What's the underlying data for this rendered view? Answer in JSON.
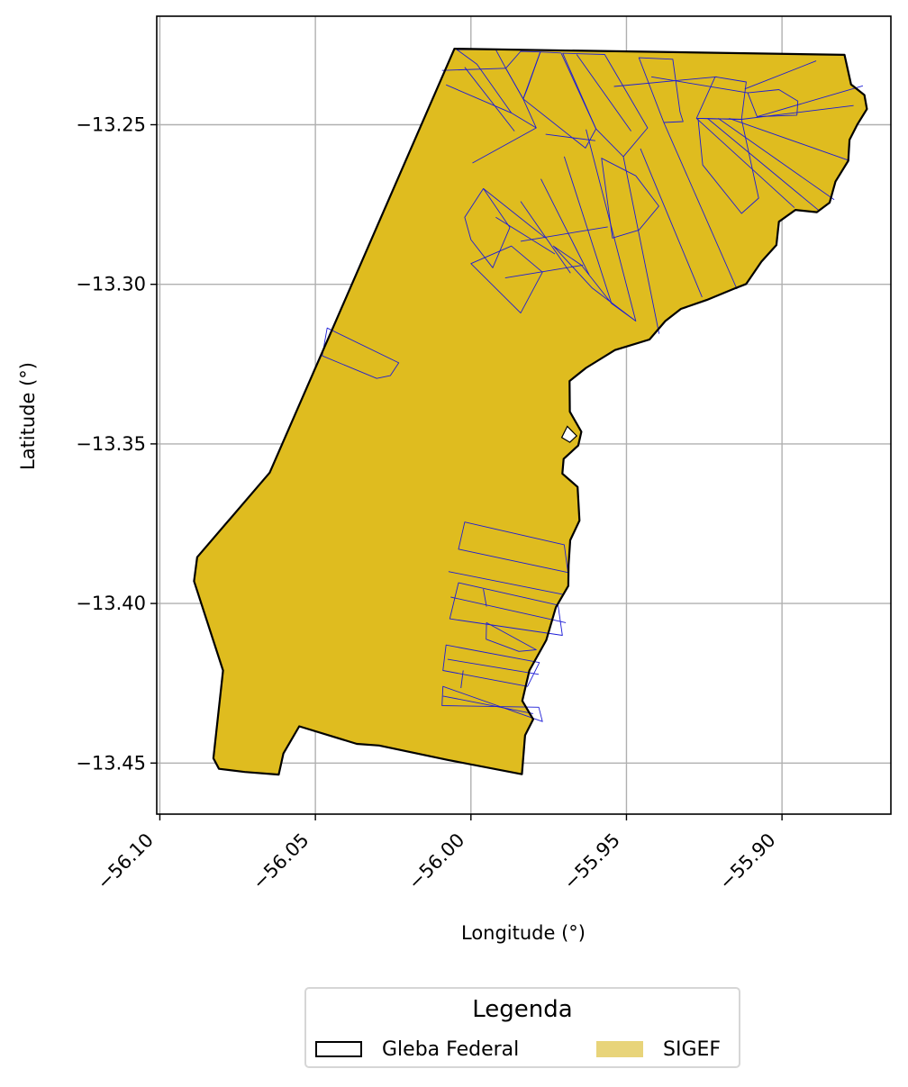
{
  "chart_data": {
    "type": "map",
    "xlabel": "Longitude (°)",
    "ylabel": "Latitude (°)",
    "xlim": [
      -56.101,
      -55.865
    ],
    "ylim": [
      -13.466,
      -13.216
    ],
    "xticks": [
      -56.1,
      -56.05,
      -56.0,
      -55.95,
      -55.9
    ],
    "xtick_labels": [
      "−56.10",
      "−56.05",
      "−56.00",
      "−55.95",
      "−55.90"
    ],
    "yticks": [
      -13.25,
      -13.3,
      -13.35,
      -13.4,
      -13.45
    ],
    "ytick_labels": [
      "−13.25",
      "−13.30",
      "−13.35",
      "−13.40",
      "−13.45"
    ],
    "grid": true,
    "legend": {
      "title": "Legenda",
      "position": "bottom-center-below-plot",
      "entries": [
        {
          "label": "Gleba Federal",
          "style": "outline",
          "color": "#000000"
        },
        {
          "label": "SIGEF",
          "style": "fill",
          "color": "#e8d47a"
        }
      ]
    },
    "colors": {
      "gleba_outline": "#000000",
      "sigef_fill": "#dfbc1f",
      "sigef_edge": "#1c1cd6",
      "grid": "#b0b0b0"
    },
    "gleba_federal_boundary": [
      [
        -56.0053,
        -13.2262
      ],
      [
        -55.8799,
        -13.2281
      ],
      [
        -55.8778,
        -13.2374
      ],
      [
        -55.8735,
        -13.2407
      ],
      [
        -55.8727,
        -13.2451
      ],
      [
        -55.8757,
        -13.2498
      ],
      [
        -55.8783,
        -13.2547
      ],
      [
        -55.8787,
        -13.2613
      ],
      [
        -55.8828,
        -13.2678
      ],
      [
        -55.8847,
        -13.2744
      ],
      [
        -55.8888,
        -13.2774
      ],
      [
        -55.8957,
        -13.2767
      ],
      [
        -55.901,
        -13.2804
      ],
      [
        -55.9018,
        -13.2877
      ],
      [
        -55.9066,
        -13.2929
      ],
      [
        -55.9115,
        -13.2999
      ],
      [
        -55.9157,
        -13.3015
      ],
      [
        -55.9242,
        -13.3049
      ],
      [
        -55.9325,
        -13.3077
      ],
      [
        -55.9375,
        -13.3115
      ],
      [
        -55.9426,
        -13.3173
      ],
      [
        -55.9537,
        -13.3206
      ],
      [
        -55.963,
        -13.3262
      ],
      [
        -55.9683,
        -13.3303
      ],
      [
        -55.9682,
        -13.3399
      ],
      [
        -55.9645,
        -13.3462
      ],
      [
        -55.9655,
        -13.3505
      ],
      [
        -55.9702,
        -13.3547
      ],
      [
        -55.9706,
        -13.3593
      ],
      [
        -55.9657,
        -13.3635
      ],
      [
        -55.9651,
        -13.374
      ],
      [
        -55.9681,
        -13.3802
      ],
      [
        -55.9686,
        -13.388
      ],
      [
        -55.9687,
        -13.3945
      ],
      [
        -55.9727,
        -13.4012
      ],
      [
        -55.9758,
        -13.4115
      ],
      [
        -55.9812,
        -13.421
      ],
      [
        -55.9835,
        -13.4305
      ],
      [
        -55.98,
        -13.4363
      ],
      [
        -55.9826,
        -13.4413
      ],
      [
        -55.9836,
        -13.4535
      ],
      [
        -56.0075,
        -13.449
      ],
      [
        -56.0295,
        -13.4445
      ],
      [
        -56.0367,
        -13.444
      ],
      [
        -56.0552,
        -13.4385
      ],
      [
        -56.0603,
        -13.447
      ],
      [
        -56.0618,
        -13.4536
      ],
      [
        -56.0727,
        -13.4528
      ],
      [
        -56.081,
        -13.4518
      ],
      [
        -56.0828,
        -13.4485
      ],
      [
        -56.0797,
        -13.421
      ],
      [
        -56.089,
        -13.393
      ],
      [
        -56.088,
        -13.3855
      ],
      [
        -56.0647,
        -13.359
      ],
      [
        -56.0433,
        -13.3112
      ],
      [
        -56.0053,
        -13.2262
      ]
    ],
    "sigef_parcels": [
      [
        [
          -56.0045,
          -13.2265
        ],
        [
          -55.992,
          -13.2265
        ],
        [
          -55.9888,
          -13.2323
        ],
        [
          -55.9832,
          -13.2419
        ],
        [
          -55.979,
          -13.251
        ],
        [
          -55.987,
          -13.2463
        ],
        [
          -55.9981,
          -13.231
        ],
        [
          -56.0045,
          -13.2265
        ]
      ],
      [
        [
          -55.984,
          -13.227
        ],
        [
          -55.9777,
          -13.2272
        ],
        [
          -55.982,
          -13.239
        ],
        [
          -55.9832,
          -13.2419
        ],
        [
          -55.9888,
          -13.2323
        ],
        [
          -55.984,
          -13.227
        ]
      ],
      [
        [
          -55.9777,
          -13.2272
        ],
        [
          -55.971,
          -13.2275
        ],
        [
          -55.9598,
          -13.2513
        ],
        [
          -55.9632,
          -13.2573
        ],
        [
          -55.9832,
          -13.2419
        ],
        [
          -55.9777,
          -13.2272
        ]
      ],
      [
        [
          -55.9705,
          -13.2276
        ],
        [
          -55.957,
          -13.228
        ],
        [
          -55.9432,
          -13.251
        ],
        [
          -55.951,
          -13.26
        ],
        [
          -55.9598,
          -13.2513
        ],
        [
          -55.9705,
          -13.2276
        ]
      ],
      [
        [
          -55.946,
          -13.229
        ],
        [
          -55.9351,
          -13.2295
        ],
        [
          -55.9328,
          -13.246
        ],
        [
          -55.9318,
          -13.249
        ],
        [
          -55.938,
          -13.2493
        ],
        [
          -55.946,
          -13.229
        ]
      ],
      [
        [
          -55.9215,
          -13.235
        ],
        [
          -55.9115,
          -13.2366
        ],
        [
          -55.913,
          -13.2483
        ],
        [
          -55.9275,
          -13.248
        ],
        [
          -55.9215,
          -13.235
        ]
      ],
      [
        [
          -55.911,
          -13.24
        ],
        [
          -55.901,
          -13.239
        ],
        [
          -55.8949,
          -13.2426
        ],
        [
          -55.8952,
          -13.247
        ],
        [
          -55.908,
          -13.2475
        ],
        [
          -55.911,
          -13.24
        ]
      ],
      [
        [
          -55.927,
          -13.248
        ],
        [
          -55.913,
          -13.2483
        ],
        [
          -55.9075,
          -13.273
        ],
        [
          -55.913,
          -13.2778
        ],
        [
          -55.9255,
          -13.2626
        ],
        [
          -55.927,
          -13.248
        ]
      ],
      [
        [
          -55.958,
          -13.2605
        ],
        [
          -55.947,
          -13.266
        ],
        [
          -55.9396,
          -13.2755
        ],
        [
          -55.946,
          -13.283
        ],
        [
          -55.9545,
          -13.2855
        ],
        [
          -55.958,
          -13.2605
        ]
      ],
      [
        [
          -56.002,
          -13.279
        ],
        [
          -56.0,
          -13.286
        ],
        [
          -55.993,
          -13.2948
        ],
        [
          -55.9875,
          -13.2822
        ],
        [
          -55.996,
          -13.27
        ],
        [
          -56.002,
          -13.279
        ]
      ],
      [
        [
          -56.0,
          -13.2935
        ],
        [
          -55.984,
          -13.309
        ],
        [
          -55.977,
          -13.2962
        ],
        [
          -55.987,
          -13.288
        ],
        [
          -56.0,
          -13.2935
        ]
      ],
      [
        [
          -55.9735,
          -13.288
        ],
        [
          -55.9645,
          -13.294
        ],
        [
          -55.9548,
          -13.306
        ],
        [
          -55.947,
          -13.3115
        ],
        [
          -55.961,
          -13.3012
        ],
        [
          -55.9735,
          -13.288
        ]
      ],
      [
        [
          -56.0462,
          -13.3137
        ],
        [
          -56.0232,
          -13.3246
        ],
        [
          -56.0259,
          -13.3286
        ],
        [
          -56.0303,
          -13.3295
        ],
        [
          -56.0478,
          -13.3224
        ],
        [
          -56.0462,
          -13.3137
        ]
      ],
      [
        [
          -56.002,
          -13.3745
        ],
        [
          -55.97,
          -13.3816
        ],
        [
          -55.9688,
          -13.3903
        ],
        [
          -56.004,
          -13.383
        ],
        [
          -56.002,
          -13.3745
        ]
      ],
      [
        [
          -56.004,
          -13.3935
        ],
        [
          -55.972,
          -13.4005
        ],
        [
          -55.9706,
          -13.41
        ],
        [
          -56.0068,
          -13.4048
        ],
        [
          -56.004,
          -13.3935
        ]
      ],
      [
        [
          -55.995,
          -13.406
        ],
        [
          -55.979,
          -13.4145
        ],
        [
          -55.9846,
          -13.415
        ],
        [
          -55.9951,
          -13.4112
        ],
        [
          -55.995,
          -13.406
        ]
      ],
      [
        [
          -56.008,
          -13.413
        ],
        [
          -55.978,
          -13.4185
        ],
        [
          -55.9818,
          -13.426
        ],
        [
          -56.009,
          -13.421
        ],
        [
          -56.008,
          -13.413
        ]
      ],
      [
        [
          -56.009,
          -13.426
        ],
        [
          -55.977,
          -13.437
        ],
        [
          -55.9782,
          -13.4325
        ],
        [
          -56.0093,
          -13.432
        ],
        [
          -56.009,
          -13.426
        ]
      ]
    ],
    "sigef_division_lines": [
      [
        [
          -56.008,
          -13.2375
        ],
        [
          -55.987,
          -13.2463
        ]
      ],
      [
        [
          -56.0093,
          -13.233
        ],
        [
          -55.9888,
          -13.2323
        ]
      ],
      [
        [
          -55.9995,
          -13.262
        ],
        [
          -55.979,
          -13.251
        ]
      ],
      [
        [
          -55.996,
          -13.27
        ],
        [
          -55.976,
          -13.2855
        ]
      ],
      [
        [
          -55.992,
          -13.279
        ],
        [
          -55.973,
          -13.2905
        ]
      ],
      [
        [
          -55.984,
          -13.274
        ],
        [
          -55.968,
          -13.2965
        ]
      ],
      [
        [
          -55.9775,
          -13.267
        ],
        [
          -55.962,
          -13.297
        ]
      ],
      [
        [
          -55.97,
          -13.26
        ],
        [
          -55.9548,
          -13.306
        ]
      ],
      [
        [
          -55.963,
          -13.2515
        ],
        [
          -55.947,
          -13.3115
        ]
      ],
      [
        [
          -55.951,
          -13.26
        ],
        [
          -55.9395,
          -13.3155
        ]
      ],
      [
        [
          -55.9455,
          -13.2575
        ],
        [
          -55.9257,
          -13.304
        ]
      ],
      [
        [
          -55.938,
          -13.2493
        ],
        [
          -55.9145,
          -13.3015
        ]
      ],
      [
        [
          -55.9275,
          -13.248
        ],
        [
          -55.896,
          -13.276
        ]
      ],
      [
        [
          -55.924,
          -13.248
        ],
        [
          -55.888,
          -13.277
        ]
      ],
      [
        [
          -55.9205,
          -13.248
        ],
        [
          -55.8832,
          -13.2735
        ]
      ],
      [
        [
          -55.917,
          -13.248
        ],
        [
          -55.8785,
          -13.2612
        ]
      ],
      [
        [
          -55.913,
          -13.2483
        ],
        [
          -55.877,
          -13.244
        ]
      ],
      [
        [
          -55.908,
          -13.2475
        ],
        [
          -55.874,
          -13.2378
        ]
      ],
      [
        [
          -55.912,
          -13.2388
        ],
        [
          -55.889,
          -13.23
        ]
      ],
      [
        [
          -55.942,
          -13.235
        ],
        [
          -55.911,
          -13.24
        ]
      ],
      [
        [
          -55.954,
          -13.238
        ],
        [
          -55.921,
          -13.235
        ]
      ],
      [
        [
          -55.966,
          -13.228
        ],
        [
          -55.9485,
          -13.252
        ]
      ],
      [
        [
          -55.96,
          -13.255
        ],
        [
          -55.976,
          -13.253
        ]
      ],
      [
        [
          -56.002,
          -13.232
        ],
        [
          -55.986,
          -13.252
        ]
      ],
      [
        [
          -55.989,
          -13.298
        ],
        [
          -55.964,
          -13.294
        ]
      ],
      [
        [
          -55.984,
          -13.2865
        ],
        [
          -55.956,
          -13.282
        ]
      ],
      [
        [
          -56.0072,
          -13.39
        ],
        [
          -55.9702,
          -13.3972
        ]
      ],
      [
        [
          -56.0065,
          -13.398
        ],
        [
          -55.9695,
          -13.406
        ]
      ],
      [
        [
          -56.0075,
          -13.4175
        ],
        [
          -55.9782,
          -13.4222
        ]
      ],
      [
        [
          -56.009,
          -13.429
        ],
        [
          -55.98,
          -13.4345
        ]
      ],
      [
        [
          -56.0025,
          -13.421
        ],
        [
          -56.0032,
          -13.4265
        ]
      ],
      [
        [
          -55.996,
          -13.3955
        ],
        [
          -55.995,
          -13.401
        ]
      ]
    ],
    "white_gaps": [
      [
        [
          -55.966,
          -13.3475
        ],
        [
          -55.969,
          -13.3445
        ],
        [
          -55.9708,
          -13.348
        ],
        [
          -55.9682,
          -13.3495
        ],
        [
          -55.966,
          -13.3475
        ]
      ]
    ]
  }
}
